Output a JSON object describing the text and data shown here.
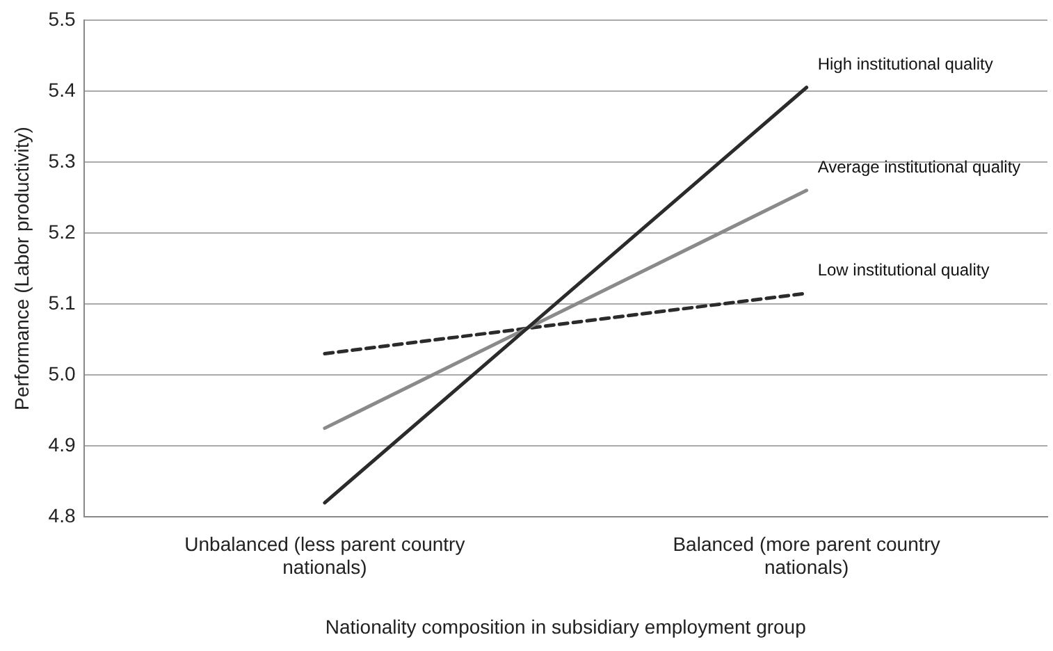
{
  "chart_data": {
    "type": "line",
    "xlabel": "Nationality composition in subsidiary employment group",
    "ylabel": "Performance (Labor productivity)",
    "categories": [
      "Unbalanced (less parent country nationals)",
      "Balanced (more parent country nationals)"
    ],
    "series": [
      {
        "name": "High institutional quality",
        "color": "#2b2b2b",
        "values": [
          4.82,
          5.405
        ],
        "line_style": "solid"
      },
      {
        "name": "Average institutional quality",
        "color": "#8a8a8a",
        "values": [
          4.925,
          5.26
        ],
        "line_style": "solid"
      },
      {
        "name": "Low institutional quality",
        "color": "#2b2b2b",
        "values": [
          5.03,
          5.115
        ],
        "line_style": "dashed"
      }
    ],
    "ylim": [
      4.8,
      5.5
    ],
    "yticks": [
      4.8,
      4.9,
      {
        "value": 5,
        "label": "5.0"
      },
      5.1,
      5.2,
      5.3,
      5.4,
      5.5
    ],
    "grid": "y",
    "legend": false,
    "marker": "none"
  }
}
